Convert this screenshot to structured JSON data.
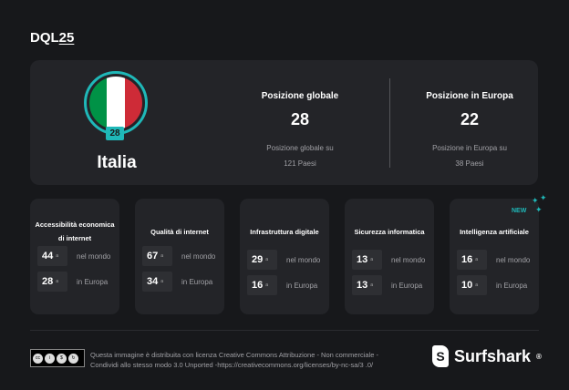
{
  "brand": {
    "prefix": "DQL",
    "suffix": "25"
  },
  "country": {
    "name": "Italia",
    "rank": "28",
    "flag_colors": [
      "#009246",
      "#ffffff",
      "#ce2b37"
    ]
  },
  "global": {
    "title": "Posizione globale",
    "value": "28",
    "subtitle_1": "Posizione globale su",
    "subtitle_2": "121 Paesi"
  },
  "europe": {
    "title": "Posizione in Europa",
    "value": "22",
    "subtitle_1": "Posizione in Europa su",
    "subtitle_2": "38 Paesi"
  },
  "ordinal": "a",
  "world_label": "nel mondo",
  "europe_label": "in Europa",
  "new_label": "NEW",
  "cards": [
    {
      "title": "Accessibilità economica di internet",
      "world": "44",
      "europe": "28"
    },
    {
      "title": "Qualità di internet",
      "world": "67",
      "europe": "34"
    },
    {
      "title": "Infrastruttura digitale",
      "world": "29",
      "europe": "16"
    },
    {
      "title": "Sicurezza informatica",
      "world": "13",
      "europe": "13"
    },
    {
      "title": "Intelligenza artificiale",
      "world": "16",
      "europe": "10"
    }
  ],
  "license": {
    "badge": [
      "cc",
      "BY",
      "NC",
      "SA"
    ],
    "text": "Questa immagine è distribuita con licenza Creative Commons Attribuzione - Non commerciale - Condividi allo stesso modo 3.0 Unported -https://creativecommons.org/licenses/by-nc-sa/3 .0/"
  },
  "footer_brand": {
    "name": "Surfshark",
    "mark": "®"
  },
  "colors": {
    "accent": "#1fb8b8",
    "background": "#17181b",
    "card": "#232428"
  }
}
